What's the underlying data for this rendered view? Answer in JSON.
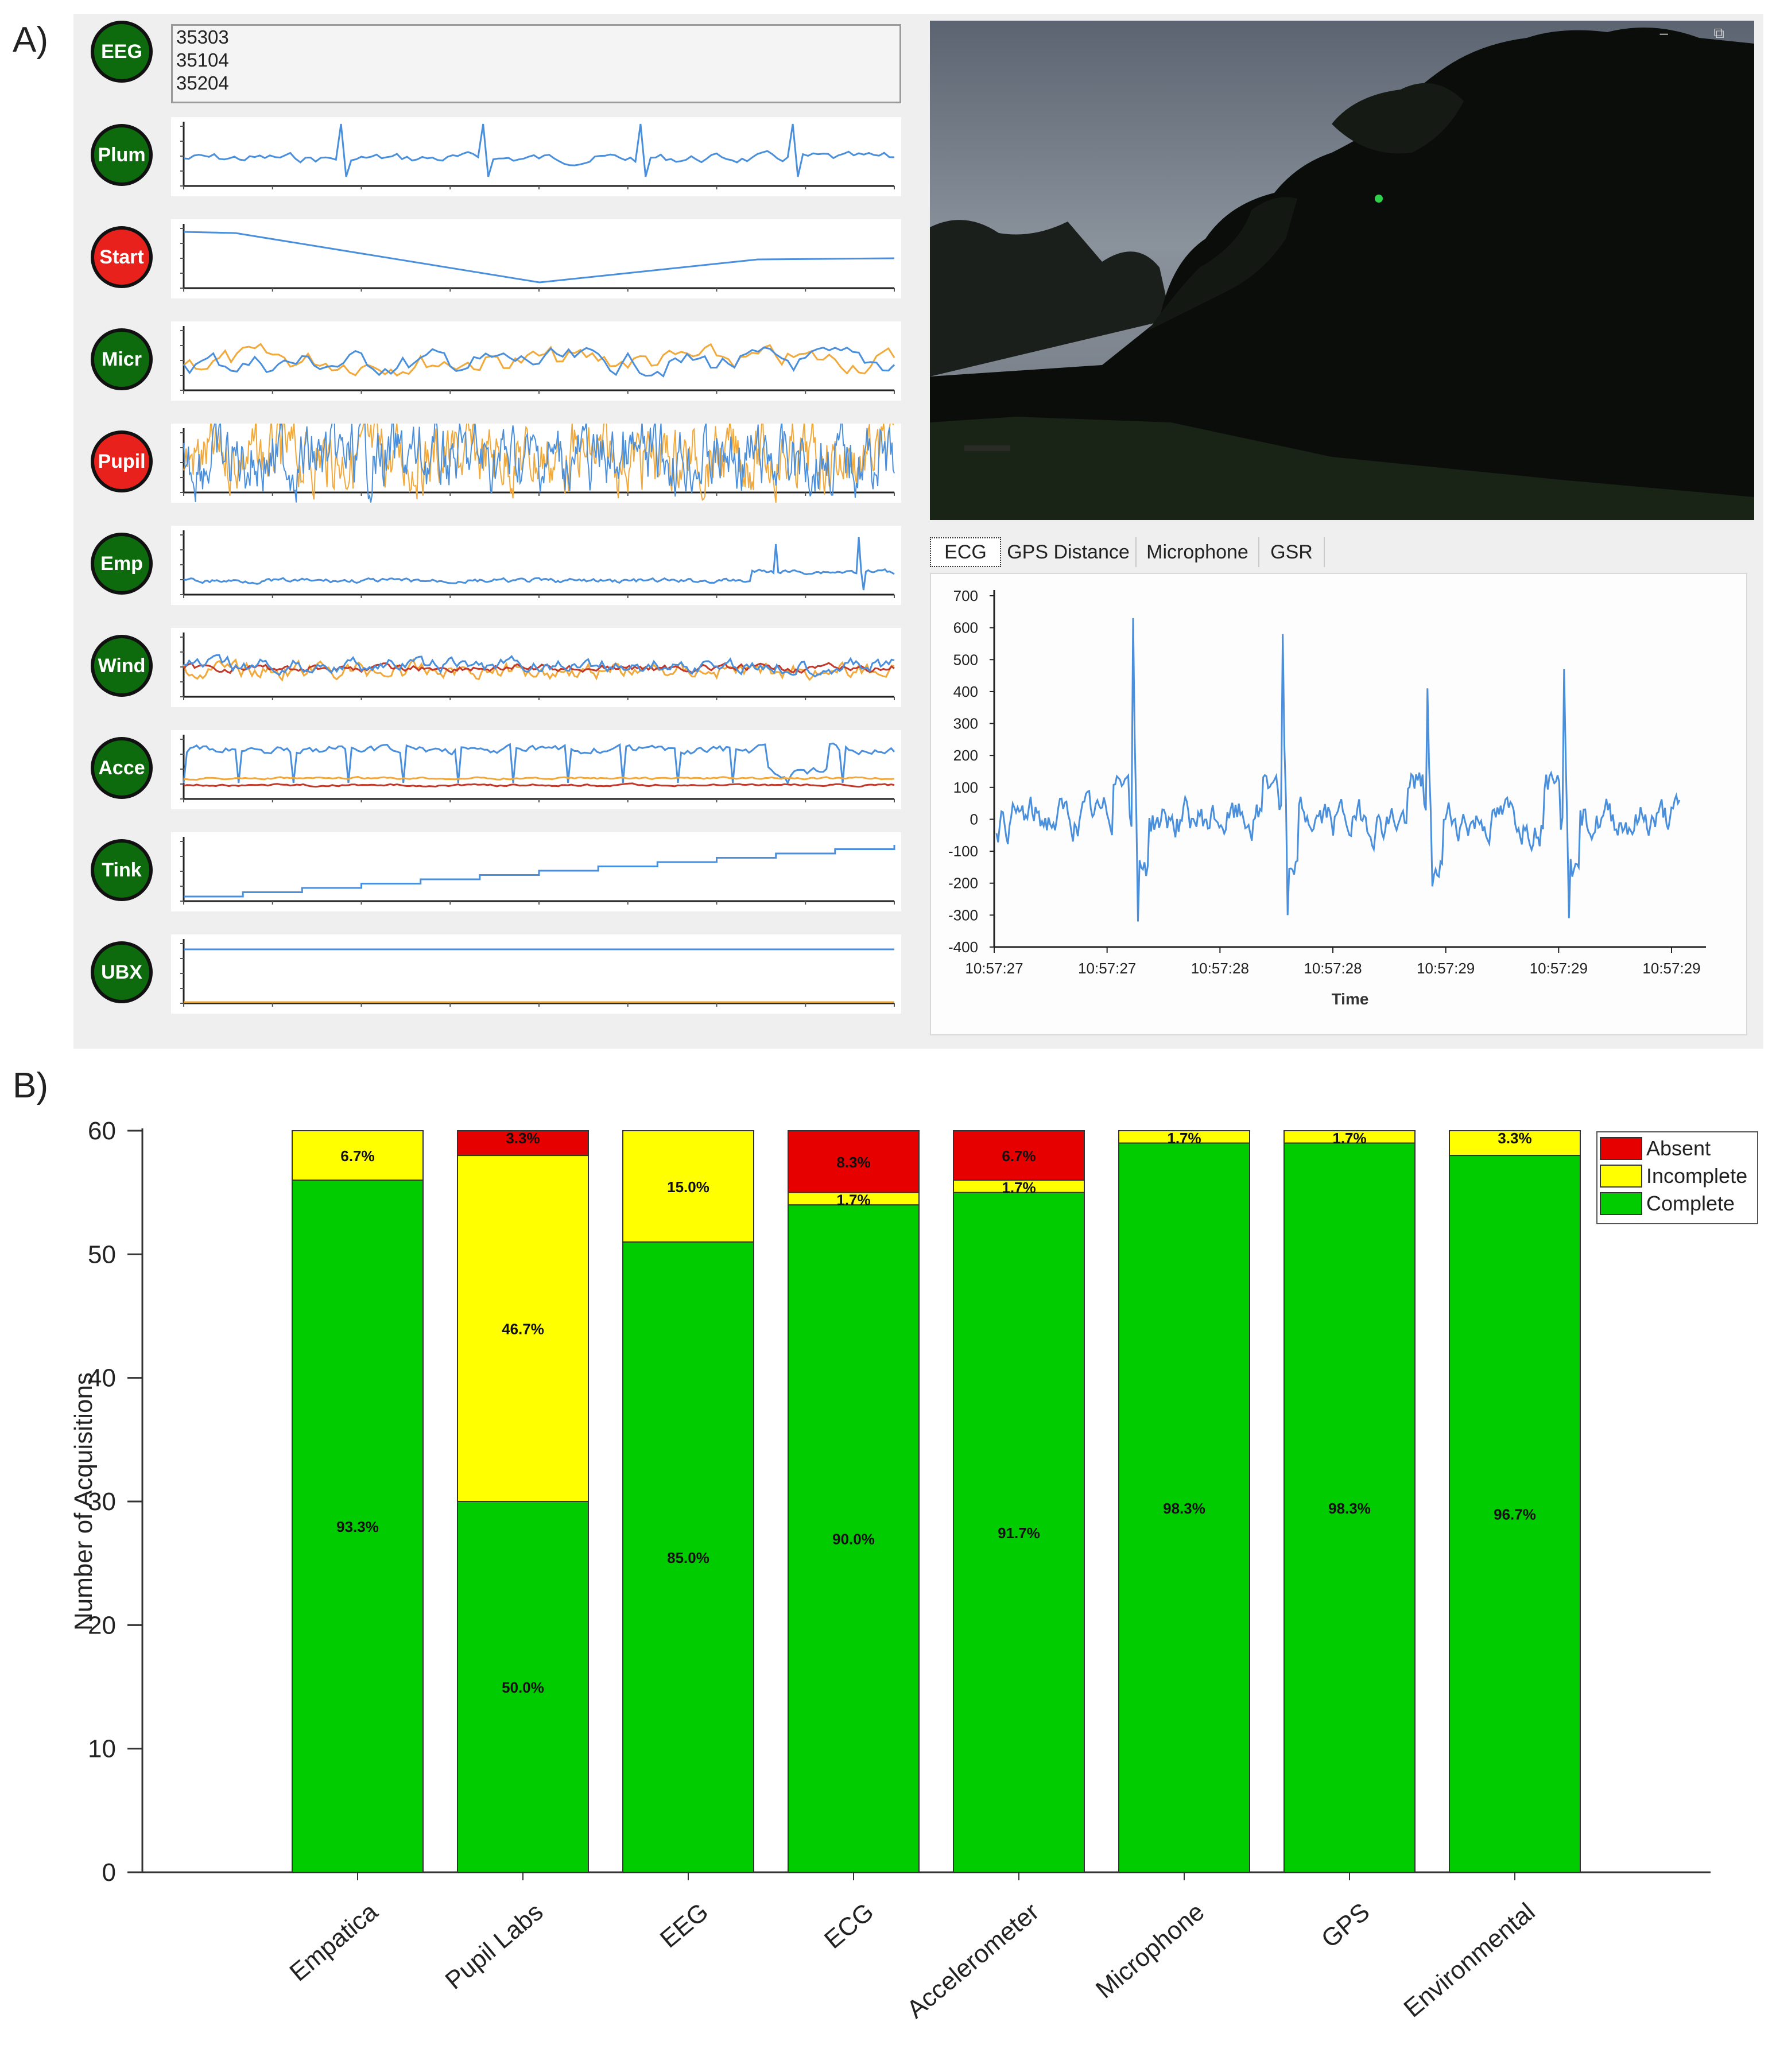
{
  "panel_labels": {
    "a": "A)",
    "b": "B)"
  },
  "eeg_readout": [
    "35303",
    "35104",
    "35204"
  ],
  "sensors": [
    {
      "label": "EEG",
      "color": "#0d6b0d"
    },
    {
      "label": "Plum",
      "color": "#0d6b0d"
    },
    {
      "label": "Start",
      "color": "#e8211c"
    },
    {
      "label": "Micr",
      "color": "#0d6b0d"
    },
    {
      "label": "Pupil",
      "color": "#e8211c"
    },
    {
      "label": "Emp",
      "color": "#0d6b0d"
    },
    {
      "label": "Wind",
      "color": "#0d6b0d"
    },
    {
      "label": "Acce",
      "color": "#0d6b0d"
    },
    {
      "label": "Tink",
      "color": "#0d6b0d"
    },
    {
      "label": "UBX",
      "color": "#0d6b0d"
    }
  ],
  "colors": {
    "series_blue": "#4a8fdc",
    "series_orange": "#f2a93b",
    "series_red": "#c0392b",
    "lamp_green": "#0d6b0d",
    "lamp_red": "#e8211c"
  },
  "tabs": [
    "ECG",
    "GPS Distance",
    "Microphone",
    "GSR"
  ],
  "active_tab": "ECG",
  "ecg": {
    "y_ticks": [
      "700",
      "600",
      "500",
      "400",
      "300",
      "200",
      "100",
      "0",
      "-100",
      "-200",
      "-300",
      "-400"
    ],
    "x_ticks": [
      "10:57:27",
      "10:57:27",
      "10:57:28",
      "10:57:28",
      "10:57:29",
      "10:57:29",
      "10:57:29"
    ],
    "xlabel": "Time",
    "ylim": [
      -400,
      700
    ]
  },
  "chart_data": {
    "type": "bar",
    "stacked": true,
    "categories": [
      "Empatica",
      "Pupil Labs",
      "EEG",
      "ECG",
      "Accelerometer",
      "Microphone",
      "GPS",
      "Environmental"
    ],
    "series": [
      {
        "name": "Complete",
        "color": "#00cc00",
        "values": [
          56,
          30,
          51,
          54,
          55,
          59,
          59,
          58
        ],
        "labels": [
          "93.3%",
          "50.0%",
          "85.0%",
          "90.0%",
          "91.7%",
          "98.3%",
          "98.3%",
          "96.7%"
        ]
      },
      {
        "name": "Incomplete",
        "color": "#ffff00",
        "values": [
          4,
          28,
          9,
          1,
          1,
          1,
          1,
          2
        ],
        "labels": [
          "6.7%",
          "46.7%",
          "15.0%",
          "1.7%",
          "1.7%",
          "1.7%",
          "1.7%",
          "3.3%"
        ]
      },
      {
        "name": "Absent",
        "color": "#e60000",
        "values": [
          0,
          2,
          0,
          5,
          4,
          0,
          0,
          0
        ],
        "labels": [
          "",
          "3.3%",
          "",
          "8.3%",
          "6.7%",
          "",
          "",
          ""
        ]
      }
    ],
    "legend_order": [
      "Absent",
      "Incomplete",
      "Complete"
    ],
    "legend_position": "top-right",
    "ylabel": "Number of Acquisitions",
    "xlabel": "",
    "ylim": [
      0,
      60
    ],
    "y_ticks": [
      0,
      10,
      20,
      30,
      40,
      50,
      60
    ]
  }
}
